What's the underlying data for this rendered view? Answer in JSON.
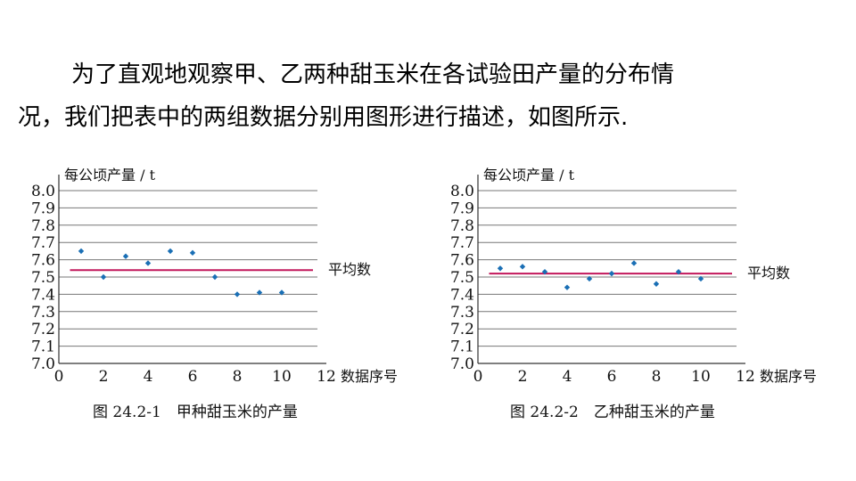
{
  "paragraph": {
    "line1": "为了直观地观察甲、乙两种甜玉米在各试验田产量的分布情",
    "line2": "况，我们把表中的两组数据分别用图形进行描述，如图所示."
  },
  "colors": {
    "point": "#1a6fb5",
    "mean_line": "#c2185b",
    "grid": "#777777",
    "axis": "#333333"
  },
  "chart_data": [
    {
      "type": "scatter",
      "ylabel": "每公顷产量 / t",
      "xlabel": "数据序号",
      "xlim": [
        0,
        12
      ],
      "ylim": [
        7.0,
        8.0
      ],
      "x_ticks": [
        0,
        2,
        4,
        6,
        8,
        10,
        12
      ],
      "y_ticks": [
        "7.0",
        "7.1",
        "7.2",
        "7.3",
        "7.4",
        "7.5",
        "7.6",
        "7.7",
        "7.8",
        "7.9",
        "8.0"
      ],
      "grid": "horizontal",
      "x": [
        1,
        2,
        3,
        4,
        5,
        6,
        7,
        8,
        9,
        10
      ],
      "y": [
        7.65,
        7.5,
        7.62,
        7.58,
        7.65,
        7.64,
        7.5,
        7.4,
        7.41,
        7.41
      ],
      "mean": 7.54,
      "mean_label": "平均数",
      "caption": "图 24.2-1　甲种甜玉米的产量"
    },
    {
      "type": "scatter",
      "ylabel": "每公顷产量 / t",
      "xlabel": "数据序号",
      "xlim": [
        0,
        12
      ],
      "ylim": [
        7.0,
        8.0
      ],
      "x_ticks": [
        0,
        2,
        4,
        6,
        8,
        10,
        12
      ],
      "y_ticks": [
        "7.0",
        "7.1",
        "7.2",
        "7.3",
        "7.4",
        "7.5",
        "7.6",
        "7.7",
        "7.8",
        "7.9",
        "8.0"
      ],
      "grid": "horizontal",
      "x": [
        1,
        2,
        3,
        4,
        5,
        6,
        7,
        8,
        9,
        10
      ],
      "y": [
        7.55,
        7.56,
        7.53,
        7.44,
        7.49,
        7.52,
        7.58,
        7.46,
        7.53,
        7.49
      ],
      "mean": 7.52,
      "mean_label": "平均数",
      "caption": "图 24.2-2　乙种甜玉米的产量"
    }
  ]
}
